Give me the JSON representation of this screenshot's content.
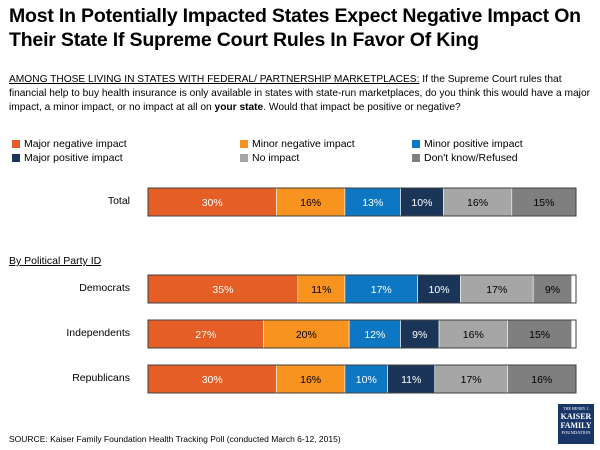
{
  "title": "Most In Potentially Impacted States Expect Negative Impact On Their State If Supreme Court Rules In Favor Of King",
  "question": {
    "prefix": "AMONG THOSE LIVING IN STATES WITH FEDERAL/ PARTNERSHIP MARKETPLACES:",
    "text": " If the Supreme Court rules that financial help to buy health insurance is only available in states with state-run marketplaces, do you think this would have a major impact, a minor impact, or no impact at all on ",
    "emphasis": "your state",
    "suffix": ".  Would that impact be positive or negative?"
  },
  "section_label": "By Political Party ID",
  "source": "SOURCE: Kaiser Family Foundation Health Tracking Poll (conducted March 6-12, 2015)",
  "logo": {
    "line1": "THE HENRY J.",
    "line2": "KAISER",
    "line3": "FAMILY",
    "line4": "FOUNDATION"
  },
  "colors": {
    "Major negative impact": "#e55e26",
    "Minor negative impact": "#f7931e",
    "Minor positive impact": "#0d77c4",
    "Major positive impact": "#1a3558",
    "No impact": "#a6a6a6",
    "Don't know/Refused": "#7f7f7f"
  },
  "chart_data": {
    "type": "bar",
    "orientation": "horizontal",
    "stacked": true,
    "title": "Most In Potentially Impacted States Expect Negative Impact On Their State If Supreme Court Rules In Favor Of King",
    "xlabel": "",
    "ylabel": "",
    "xlim": [
      0,
      100
    ],
    "categories": [
      "Total",
      "Democrats",
      "Independents",
      "Republicans"
    ],
    "series": [
      {
        "name": "Major negative impact",
        "values": [
          30,
          35,
          27,
          30
        ]
      },
      {
        "name": "Minor negative impact",
        "values": [
          16,
          11,
          20,
          16
        ]
      },
      {
        "name": "Minor positive impact",
        "values": [
          13,
          17,
          12,
          10
        ]
      },
      {
        "name": "Major positive impact",
        "values": [
          10,
          10,
          9,
          11
        ]
      },
      {
        "name": "No impact",
        "values": [
          16,
          17,
          16,
          17
        ]
      },
      {
        "name": "Don't know/Refused",
        "values": [
          15,
          9,
          15,
          16
        ]
      }
    ],
    "label_suffix": "%",
    "legend_position": "top"
  }
}
